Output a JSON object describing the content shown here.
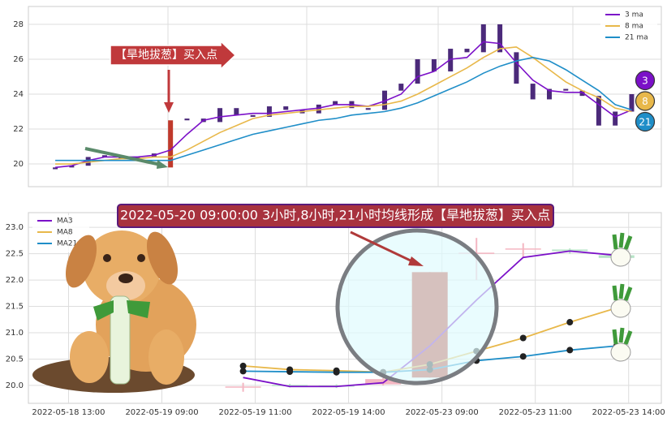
{
  "chart_data": [
    {
      "type": "candlestick",
      "x": [
        0,
        1,
        2,
        3,
        4,
        5,
        6,
        7,
        8,
        9,
        10,
        11,
        12,
        13,
        14,
        15,
        16,
        17,
        18,
        19,
        20,
        21,
        22,
        23,
        24,
        25,
        26,
        27,
        28,
        29,
        30,
        31,
        32,
        33,
        34,
        35
      ],
      "open": [
        19.7,
        19.8,
        19.9,
        20.4,
        20.5,
        20.3,
        20.4,
        19.8,
        22.5,
        22.6,
        22.4,
        23.2,
        22.8,
        22.7,
        23.3,
        23.1,
        22.9,
        23.4,
        23.6,
        23.2,
        23.1,
        24.2,
        24.6,
        26.0,
        25.3,
        26.6,
        26.4,
        28.0,
        26.4,
        24.6,
        23.7,
        24.3,
        24.2,
        23.9,
        22.2,
        23.0
      ],
      "close": [
        19.8,
        19.9,
        20.4,
        20.5,
        20.3,
        20.4,
        20.6,
        22.5,
        22.6,
        22.4,
        23.2,
        22.8,
        22.7,
        23.3,
        23.1,
        22.9,
        23.4,
        23.6,
        23.2,
        23.1,
        24.2,
        24.6,
        26.0,
        25.3,
        26.6,
        26.4,
        28.0,
        26.4,
        24.6,
        23.7,
        24.3,
        24.2,
        23.9,
        22.2,
        23.0,
        24.0
      ],
      "candle_colors": [
        "#4b2a7a",
        "#4b2a7a",
        "#4b2a7a",
        "#4b2a7a",
        "#4b2a7a",
        "#4b2a7a",
        "#4b2a7a",
        "#c0392b",
        "#4b2a7a",
        "#4b2a7a",
        "#4b2a7a",
        "#4b2a7a",
        "#4b2a7a",
        "#4b2a7a",
        "#4b2a7a",
        "#4b2a7a",
        "#4b2a7a",
        "#4b2a7a",
        "#4b2a7a",
        "#4b2a7a",
        "#4b2a7a",
        "#4b2a7a",
        "#4b2a7a",
        "#4b2a7a",
        "#4b2a7a",
        "#4b2a7a",
        "#4b2a7a",
        "#4b2a7a",
        "#4b2a7a",
        "#4b2a7a",
        "#4b2a7a",
        "#4b2a7a",
        "#4b2a7a",
        "#4b2a7a",
        "#4b2a7a",
        "#4b2a7a"
      ],
      "series": [
        {
          "name": "3 ma",
          "color": "#7b10c8",
          "values": [
            19.8,
            19.9,
            20.2,
            20.4,
            20.4,
            20.4,
            20.5,
            20.8,
            21.7,
            22.5,
            22.7,
            22.8,
            22.9,
            22.9,
            23.0,
            23.1,
            23.2,
            23.4,
            23.4,
            23.3,
            23.6,
            24.0,
            25.0,
            25.3,
            26.0,
            26.1,
            27.0,
            26.9,
            25.8,
            24.8,
            24.2,
            24.1,
            24.1,
            23.4,
            22.7,
            23.1
          ]
        },
        {
          "name": "8 ma",
          "color": "#e8b84a",
          "values": [
            20.0,
            20.0,
            20.1,
            20.2,
            20.3,
            20.3,
            20.4,
            20.4,
            20.8,
            21.3,
            21.8,
            22.2,
            22.6,
            22.8,
            22.9,
            23.0,
            23.1,
            23.2,
            23.3,
            23.3,
            23.4,
            23.6,
            24.0,
            24.5,
            25.0,
            25.5,
            26.1,
            26.6,
            26.7,
            26.1,
            25.4,
            24.7,
            24.2,
            23.8,
            23.2,
            23.0
          ]
        },
        {
          "name": "21 ma",
          "color": "#1f8ec8",
          "values": [
            20.2,
            20.2,
            20.2,
            20.2,
            20.2,
            20.2,
            20.2,
            20.2,
            20.5,
            20.8,
            21.1,
            21.4,
            21.7,
            21.9,
            22.1,
            22.3,
            22.5,
            22.6,
            22.8,
            22.9,
            23.0,
            23.2,
            23.5,
            23.9,
            24.3,
            24.7,
            25.2,
            25.6,
            25.9,
            26.1,
            25.9,
            25.4,
            24.8,
            24.2,
            23.4,
            23.1
          ]
        }
      ],
      "xlim": [
        -1.63,
        36.8
      ],
      "ylim": [
        18.7,
        29.02
      ],
      "yticks": [
        20,
        22,
        24,
        26,
        28
      ],
      "grid": true,
      "legend": "upper right",
      "annotation": "【旱地拔葱】买入点",
      "badges": [
        "3",
        "8",
        "21"
      ]
    },
    {
      "type": "candlestick",
      "x": [
        0,
        1,
        2,
        3,
        4,
        5,
        6,
        7,
        8
      ],
      "open": [
        19.98,
        19.99,
        19.98,
        20.02,
        20.15,
        22.5,
        22.58,
        22.55,
        22.42
      ],
      "high": [
        20.05,
        20.03,
        20.02,
        20.14,
        22.15,
        22.8,
        22.7,
        22.6,
        22.52
      ],
      "low": [
        19.88,
        19.96,
        19.95,
        20.0,
        20.15,
        22.0,
        22.42,
        22.5,
        22.38
      ],
      "close": [
        19.97,
        20.01,
        20.0,
        20.12,
        22.15,
        22.52,
        22.6,
        22.58,
        22.47
      ],
      "candle_colors": [
        "#f4b6c2",
        "#b7e4c7",
        "#b7e4c7",
        "#f4b6c2",
        "#c0392b",
        "#f4b6c2",
        "#f4b6c2",
        "#b7e4c7",
        "#b7e4c7"
      ],
      "series": [
        {
          "name": "MA3",
          "color": "#7b10c8",
          "values": [
            20.15,
            19.98,
            19.98,
            20.05,
            20.75,
            21.62,
            22.43,
            22.55,
            22.47
          ]
        },
        {
          "name": "MA8",
          "color": "#e8b84a",
          "values": [
            20.37,
            20.3,
            20.28,
            20.25,
            20.4,
            20.65,
            20.9,
            21.2,
            21.47
          ]
        },
        {
          "name": "MA21",
          "color": "#1f8ec8",
          "values": [
            20.27,
            20.26,
            20.25,
            20.25,
            20.3,
            20.47,
            20.55,
            20.67,
            20.75
          ]
        }
      ],
      "xlim": [
        -4.6,
        8.96
      ],
      "xticks": [
        {
          "value": -3.74,
          "label": "2022-05-18 13:00"
        },
        {
          "value": -1.74,
          "label": "2022-05-19 09:00"
        },
        {
          "value": 0.26,
          "label": "2022-05-19 11:00"
        },
        {
          "value": 2.26,
          "label": "2022-05-19 14:00"
        },
        {
          "value": 4.26,
          "label": "2022-05-23 09:00"
        },
        {
          "value": 6.26,
          "label": "2022-05-23 11:00"
        },
        {
          "value": 8.26,
          "label": "2022-05-23 14:00"
        }
      ],
      "ylim": [
        19.66,
        23.28
      ],
      "yticks": [
        {
          "value": 20,
          "label": "20.0"
        },
        20.5,
        {
          "value": 21,
          "label": "21.0"
        },
        21.5,
        {
          "value": 22,
          "label": "22.0"
        },
        22.5,
        {
          "value": 23,
          "label": "23.0"
        }
      ],
      "grid": true,
      "legend": "upper left",
      "annotation": "2022-05-20 09:00:00 3小时,8小时,21小时均线形成【旱地拔葱】买入点"
    }
  ]
}
